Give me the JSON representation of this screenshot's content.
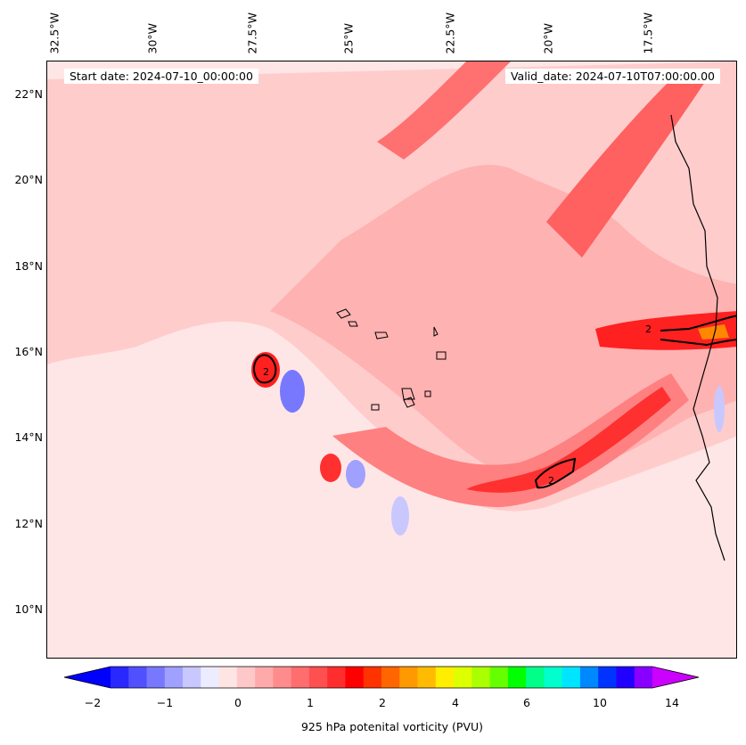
{
  "map": {
    "start_date": "Start date: 2024-07-10_00:00:00",
    "valid_date": "Valid_date: 2024-07-10T07:00:00.00",
    "lon_labels": [
      "32.5°W",
      "30°W",
      "27.5°W",
      "25°W",
      "22.5°W",
      "20°W",
      "17.5°W"
    ],
    "lat_labels": [
      "22°N",
      "20°N",
      "18°N",
      "16°N",
      "14°N",
      "12°N",
      "10°N"
    ],
    "contour_labels": [
      "2",
      "2",
      "2"
    ]
  },
  "colorbar": {
    "title": "925 hPa potenital vorticity (PVU)",
    "ticks": [
      "−2",
      "−1",
      "0",
      "1",
      "2",
      "4",
      "6",
      "10",
      "14"
    ],
    "colors": [
      "#0000ff",
      "#2828ff",
      "#5050ff",
      "#7878ff",
      "#a0a0ff",
      "#c8c8ff",
      "#ececff",
      "#ffe4e4",
      "#ffc8c8",
      "#ffaaaa",
      "#ff8c8c",
      "#ff6e6e",
      "#ff5050",
      "#ff2e2e",
      "#ff0000",
      "#ff3300",
      "#ff6600",
      "#ff9900",
      "#ffbb00",
      "#ffee00",
      "#ddff00",
      "#aaff00",
      "#66ff00",
      "#00ff00",
      "#00ff88",
      "#00ffcc",
      "#00e5ff",
      "#0088ff",
      "#0033ff",
      "#2200ff",
      "#8800ff",
      "#cc00ff"
    ]
  }
}
